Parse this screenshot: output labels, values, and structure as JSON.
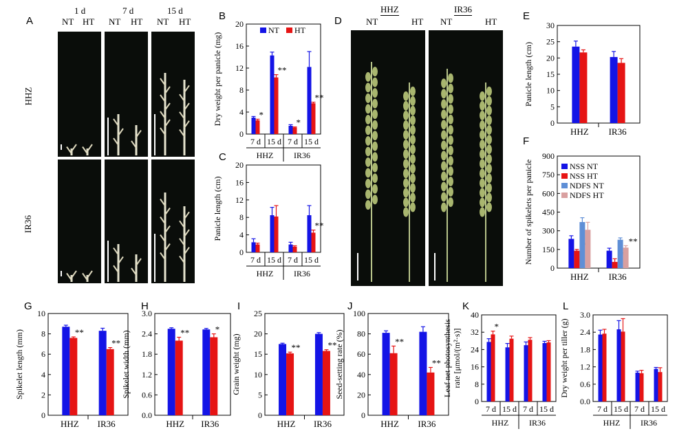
{
  "colors": {
    "nt": "#1414e6",
    "ht": "#e61414",
    "ndfs_nt": "#5f8fd6",
    "ndfs_ht": "#d9a0a0",
    "photo_bg": "#0a0d0a"
  },
  "panel_A": {
    "label": "A",
    "timepoints": [
      "1 d",
      "7 d",
      "15 d"
    ],
    "treatments": [
      "NT",
      "HT"
    ],
    "rows": [
      "HHZ",
      "IR36"
    ]
  },
  "panel_D": {
    "label": "D",
    "varieties": [
      "HHZ",
      "IR36"
    ],
    "treatments": [
      "NT",
      "HT"
    ]
  },
  "chart_data": [
    {
      "panel": "B",
      "type": "bar",
      "ylabel": "Dry weight per panicle (mg)",
      "ylim": [
        0,
        20
      ],
      "yticks": [
        0,
        4,
        8,
        12,
        16,
        20
      ],
      "legend": [
        {
          "name": "NT",
          "color": "#1414e6"
        },
        {
          "name": "HT",
          "color": "#e61414"
        }
      ],
      "categories": [
        "7 d",
        "15 d",
        "7 d",
        "15 d"
      ],
      "groups": [
        "HHZ",
        "IR36"
      ],
      "group_of": [
        0,
        0,
        1,
        1
      ],
      "series": [
        {
          "name": "NT",
          "values": [
            3.0,
            14.3,
            1.5,
            12.2
          ],
          "errors": [
            0.2,
            0.6,
            0.2,
            2.8
          ]
        },
        {
          "name": "HT",
          "values": [
            2.5,
            10.3,
            1.2,
            5.6
          ],
          "errors": [
            0.2,
            0.5,
            0.1,
            0.2
          ]
        }
      ],
      "significance": [
        "*",
        "**",
        "*",
        "**"
      ]
    },
    {
      "panel": "C",
      "type": "bar",
      "ylabel": "Panicle length (cm)",
      "ylim": [
        0,
        20
      ],
      "yticks": [
        0,
        4,
        8,
        12,
        16,
        20
      ],
      "categories": [
        "7 d",
        "15 d",
        "7 d",
        "15 d"
      ],
      "groups": [
        "HHZ",
        "IR36"
      ],
      "group_of": [
        0,
        0,
        1,
        1
      ],
      "series": [
        {
          "name": "NT",
          "values": [
            2.3,
            8.5,
            1.8,
            8.5
          ],
          "errors": [
            0.8,
            1.8,
            0.5,
            2.2
          ]
        },
        {
          "name": "HT",
          "values": [
            1.8,
            8.2,
            1.3,
            4.5
          ],
          "errors": [
            0.3,
            2.5,
            0.2,
            0.6
          ]
        }
      ],
      "significance": [
        "",
        "",
        "",
        "**"
      ]
    },
    {
      "panel": "E",
      "type": "bar",
      "ylabel": "Panicle length (cm)",
      "ylim": [
        0,
        30
      ],
      "yticks": [
        0,
        5,
        10,
        15,
        20,
        25,
        30
      ],
      "categories": [
        "HHZ",
        "IR36"
      ],
      "series": [
        {
          "name": "NT",
          "values": [
            23.5,
            20.3
          ],
          "errors": [
            1.7,
            1.7
          ]
        },
        {
          "name": "HT",
          "values": [
            21.7,
            18.5
          ],
          "errors": [
            0.8,
            1.3
          ]
        }
      ],
      "significance": [
        "",
        ""
      ]
    },
    {
      "panel": "F",
      "type": "bar",
      "ylabel": "Number of spikelets per panicle",
      "ylim": [
        0,
        900
      ],
      "yticks": [
        0,
        150,
        300,
        450,
        600,
        750,
        900
      ],
      "legend": [
        {
          "name": "NSS NT",
          "color": "#1414e6"
        },
        {
          "name": "NSS HT",
          "color": "#e61414"
        },
        {
          "name": "NDFS NT",
          "color": "#5f8fd6"
        },
        {
          "name": "NDFS HT",
          "color": "#d9a0a0"
        }
      ],
      "categories": [
        "HHZ",
        "IR36"
      ],
      "series": [
        {
          "name": "NSS NT",
          "values": [
            235,
            140
          ],
          "errors": [
            25,
            20
          ]
        },
        {
          "name": "NSS HT",
          "values": [
            140,
            50
          ],
          "errors": [
            10,
            25
          ]
        },
        {
          "name": "NDFS NT",
          "values": [
            370,
            228
          ],
          "errors": [
            35,
            15
          ]
        },
        {
          "name": "NDFS HT",
          "values": [
            308,
            165
          ],
          "errors": [
            60,
            15
          ]
        }
      ],
      "significance": [
        [
          "",
          "**",
          "",
          ""
        ],
        [
          "",
          "**",
          "",
          "**"
        ]
      ]
    },
    {
      "panel": "G",
      "type": "bar",
      "ylabel": "Spikelet length (mm)",
      "ylim": [
        0,
        10
      ],
      "yticks": [
        0,
        2,
        4,
        6,
        8,
        10
      ],
      "categories": [
        "HHZ",
        "IR36"
      ],
      "series": [
        {
          "name": "NT",
          "values": [
            8.7,
            8.3
          ],
          "errors": [
            0.15,
            0.25
          ]
        },
        {
          "name": "HT",
          "values": [
            7.6,
            6.5
          ],
          "errors": [
            0.1,
            0.15
          ]
        }
      ],
      "significance": [
        "**",
        "**"
      ]
    },
    {
      "panel": "H",
      "type": "bar",
      "ylabel": "Spikelet width (mm)",
      "ylim": [
        0,
        3.0
      ],
      "yticks": [
        0,
        0.6,
        1.2,
        1.8,
        2.4,
        3.0
      ],
      "categories": [
        "HHZ",
        "IR36"
      ],
      "series": [
        {
          "name": "NT",
          "values": [
            2.55,
            2.53
          ],
          "errors": [
            0.03,
            0.03
          ]
        },
        {
          "name": "HT",
          "values": [
            2.2,
            2.3
          ],
          "errors": [
            0.1,
            0.1
          ]
        }
      ],
      "significance": [
        "**",
        "*"
      ]
    },
    {
      "panel": "I",
      "type": "bar",
      "ylabel": "Grain weight (mg)",
      "ylim": [
        0,
        25
      ],
      "yticks": [
        0,
        5,
        10,
        15,
        20,
        25
      ],
      "categories": [
        "HHZ",
        "IR36"
      ],
      "series": [
        {
          "name": "NT",
          "values": [
            17.5,
            20.0
          ],
          "errors": [
            0.2,
            0.3
          ]
        },
        {
          "name": "HT",
          "values": [
            15.2,
            15.8
          ],
          "errors": [
            0.3,
            0.3
          ]
        }
      ],
      "significance": [
        "**",
        "**"
      ]
    },
    {
      "panel": "J",
      "type": "bar",
      "ylabel": "Seed-setting rate (%)",
      "ylim": [
        0,
        100
      ],
      "yticks": [
        0,
        20,
        40,
        60,
        80,
        100
      ],
      "categories": [
        "HHZ",
        "IR36"
      ],
      "series": [
        {
          "name": "NT",
          "values": [
            81,
            82
          ],
          "errors": [
            2,
            5
          ]
        },
        {
          "name": "HT",
          "values": [
            61,
            42
          ],
          "errors": [
            7,
            5
          ]
        }
      ],
      "significance": [
        "**",
        "**"
      ]
    },
    {
      "panel": "K",
      "type": "bar",
      "ylabel": "Leaf net photosynthesis rate [μmol/(m²·s)]",
      "ylim": [
        0,
        40
      ],
      "yticks": [
        0,
        8,
        16,
        24,
        32,
        40
      ],
      "categories": [
        "7 d",
        "15 d",
        "7 d",
        "15 d"
      ],
      "groups": [
        "HHZ",
        "IR36"
      ],
      "group_of": [
        0,
        0,
        1,
        1
      ],
      "series": [
        {
          "name": "NT",
          "values": [
            27.5,
            25.0,
            26.0,
            27.0
          ],
          "errors": [
            1.5,
            1.8,
            1.5,
            0.8
          ]
        },
        {
          "name": "HT",
          "values": [
            31.0,
            29.0,
            28.5,
            27.3
          ],
          "errors": [
            1.5,
            1.2,
            1.0,
            0.8
          ]
        }
      ],
      "significance": [
        "*",
        "",
        "",
        ""
      ]
    },
    {
      "panel": "L",
      "type": "bar",
      "ylabel": "Dry weight per tiller (g)",
      "ylim": [
        0,
        3.0
      ],
      "yticks": [
        0,
        0.6,
        1.2,
        1.8,
        2.4,
        3.0
      ],
      "categories": [
        "7 d",
        "15 d",
        "7 d",
        "15 d"
      ],
      "groups": [
        "HHZ",
        "IR36"
      ],
      "group_of": [
        0,
        0,
        1,
        1
      ],
      "series": [
        {
          "name": "NT",
          "values": [
            2.32,
            2.5,
            1.0,
            1.13
          ],
          "errors": [
            0.15,
            0.3,
            0.05,
            0.05
          ]
        },
        {
          "name": "HT",
          "values": [
            2.35,
            2.42,
            0.98,
            1.02
          ],
          "errors": [
            0.15,
            0.45,
            0.1,
            0.15
          ]
        }
      ],
      "significance": [
        "",
        "",
        "",
        ""
      ]
    }
  ]
}
